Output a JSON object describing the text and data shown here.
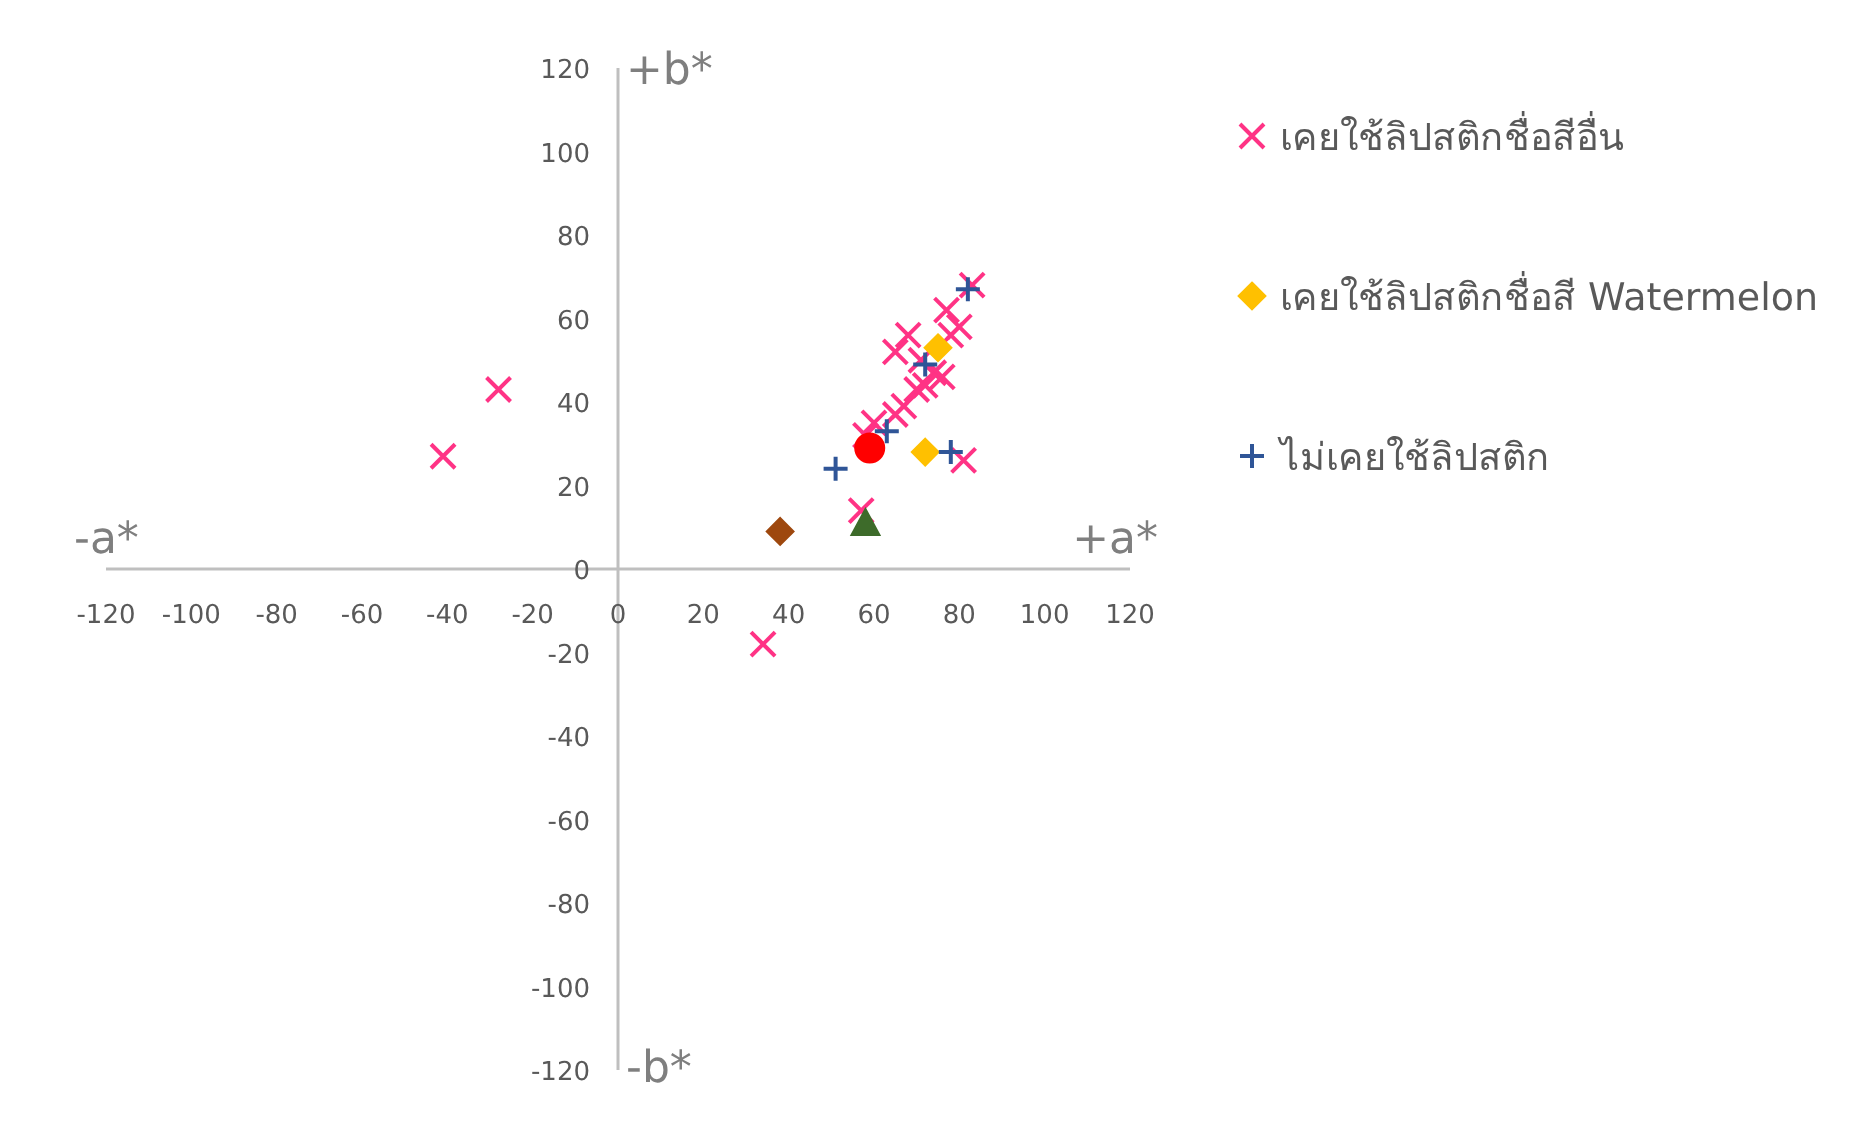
{
  "chart_data": {
    "type": "scatter",
    "xlim": [
      -120,
      120
    ],
    "ylim": [
      -120,
      120
    ],
    "xticks": [
      -120,
      -100,
      -80,
      -60,
      -40,
      -20,
      0,
      20,
      40,
      60,
      80,
      100,
      120
    ],
    "yticks": [
      -120,
      -100,
      -80,
      -60,
      -40,
      -20,
      0,
      20,
      40,
      60,
      80,
      100,
      120
    ],
    "grid": false,
    "legend": "right",
    "annotations": [
      "+b*",
      "-b*",
      "-a*",
      "+a*"
    ],
    "series": [
      {
        "name": "เคยใช้ลิปสติกชื่อสีอื่น",
        "color": "#ff3385",
        "marker": "cross",
        "x": [
          -28,
          -41,
          34,
          57,
          81,
          83,
          77,
          80,
          78,
          68,
          65,
          74,
          72,
          70,
          67,
          65,
          60,
          58,
          71,
          76
        ],
        "values": [
          43,
          27,
          -18,
          14,
          26,
          68,
          62,
          58,
          56,
          56,
          52,
          47,
          44,
          43,
          39,
          37,
          35,
          32,
          50,
          46
        ]
      },
      {
        "name": "เคยใช้ลิปสติกชื่อสี Watermelon",
        "color": "#ffc000",
        "marker": "diamond",
        "x": [
          72,
          75
        ],
        "values": [
          28,
          53
        ]
      },
      {
        "name": "ไม่เคยใช้ลิปสติก",
        "color": "#2f5597",
        "marker": "plus",
        "x": [
          82,
          72,
          78,
          63,
          51
        ],
        "values": [
          67,
          49,
          28,
          33,
          24
        ]
      },
      {
        "color": "#ff0000",
        "marker": "circle",
        "x": [
          59
        ],
        "values": [
          29
        ]
      },
      {
        "color": "#9e480e",
        "marker": "diamond",
        "x": [
          38
        ],
        "values": [
          9
        ]
      },
      {
        "color": "#3d6b2a",
        "marker": "triangle",
        "x": [
          58
        ],
        "values": [
          11
        ]
      }
    ]
  }
}
